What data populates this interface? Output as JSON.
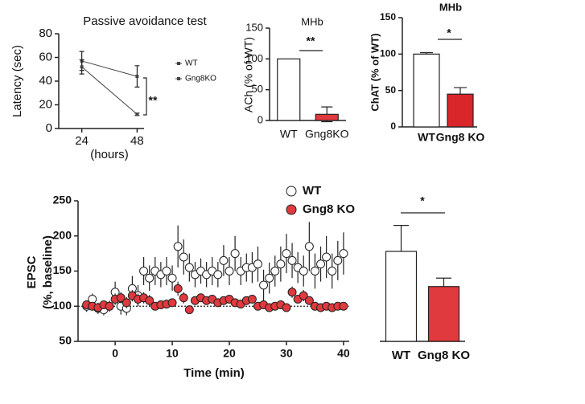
{
  "chart_data": [
    {
      "type": "line",
      "title": "Passive avoidance test",
      "xlabel": "(hours)",
      "ylabel": [
        "Latency (sec)"
      ],
      "x": [
        24,
        48
      ],
      "xlim": [
        14,
        51
      ],
      "xticks": [
        24,
        48
      ],
      "ylim": [
        0,
        80
      ],
      "yticks": [
        0,
        20,
        40,
        60,
        80
      ],
      "series": [
        {
          "name": "WT",
          "color": "#444444",
          "values": [
            57,
            44
          ],
          "errors": [
            8,
            9
          ]
        },
        {
          "name": "Gng8KO",
          "color": "#444444",
          "values": [
            52,
            12
          ],
          "errors": [
            6,
            1
          ]
        }
      ],
      "annotation": "**"
    },
    {
      "type": "bar",
      "title": "MHb",
      "ylabel": [
        "ACh (% of WT)"
      ],
      "categories": [
        "WT",
        "Gng8KO"
      ],
      "values": [
        100,
        10
      ],
      "errors": [
        0,
        12
      ],
      "colors": [
        "#ffffff",
        "#e0393e"
      ],
      "ylim": [
        0,
        150
      ],
      "yticks": [
        0,
        50,
        100,
        150
      ],
      "annotation": "**"
    },
    {
      "type": "bar",
      "title": "MHb",
      "ylabel": [
        "ChAT (% of WT)"
      ],
      "categories": [
        "WT",
        "Gng8 KO"
      ],
      "values": [
        100,
        45
      ],
      "errors": [
        2,
        9
      ],
      "colors": [
        "#ffffff",
        "#d9262b"
      ],
      "ylim": [
        0,
        150
      ],
      "yticks": [
        0,
        50,
        100,
        150
      ],
      "annotation": "*"
    },
    {
      "type": "scatter",
      "xlabel": "Time (min)",
      "ylabel": [
        "EPSC",
        "(%, baseline)"
      ],
      "x": [
        -5,
        -4,
        -3,
        -2,
        -1,
        0,
        1,
        2,
        3,
        4,
        5,
        6,
        7,
        8,
        9,
        10,
        11,
        12,
        13,
        14,
        15,
        16,
        17,
        18,
        19,
        20,
        21,
        22,
        23,
        24,
        25,
        26,
        27,
        28,
        29,
        30,
        31,
        32,
        33,
        34,
        35,
        36,
        37,
        38,
        39,
        40
      ],
      "xlim": [
        -6.5,
        41
      ],
      "xticks": [
        0,
        10,
        20,
        30,
        40
      ],
      "ylim": [
        50,
        250
      ],
      "yticks": [
        50,
        100,
        150,
        200,
        250
      ],
      "hline": 100,
      "series": [
        {
          "name": "WT",
          "color": "#ffffff",
          "values": [
            100,
            110,
            97,
            95,
            100,
            120,
            100,
            97,
            125,
            115,
            150,
            140,
            150,
            145,
            150,
            140,
            185,
            170,
            155,
            145,
            150,
            145,
            150,
            145,
            165,
            150,
            175,
            150,
            155,
            155,
            160,
            130,
            140,
            150,
            160,
            175,
            165,
            155,
            150,
            185,
            150,
            160,
            170,
            150,
            165,
            175
          ],
          "errors": [
            8,
            8,
            8,
            8,
            8,
            15,
            12,
            10,
            18,
            15,
            20,
            18,
            20,
            18,
            20,
            18,
            30,
            25,
            20,
            18,
            18,
            18,
            20,
            18,
            22,
            20,
            25,
            20,
            20,
            22,
            25,
            22,
            22,
            22,
            25,
            28,
            25,
            22,
            22,
            35,
            25,
            25,
            30,
            25,
            28,
            30
          ]
        },
        {
          "name": "Gng8 KO",
          "color": "#e0393e",
          "values": [
            102,
            100,
            98,
            102,
            100,
            110,
            112,
            105,
            115,
            110,
            112,
            108,
            100,
            102,
            103,
            105,
            125,
            112,
            95,
            108,
            112,
            108,
            110,
            105,
            108,
            110,
            105,
            103,
            108,
            110,
            100,
            102,
            98,
            100,
            102,
            98,
            120,
            110,
            115,
            108,
            100,
            98,
            100,
            98,
            100,
            100
          ],
          "errors": [
            5,
            5,
            5,
            5,
            5,
            8,
            8,
            8,
            8,
            8,
            8,
            8,
            6,
            6,
            6,
            6,
            10,
            8,
            6,
            6,
            6,
            6,
            6,
            6,
            6,
            6,
            6,
            6,
            6,
            6,
            6,
            6,
            6,
            6,
            6,
            6,
            8,
            6,
            8,
            6,
            6,
            6,
            6,
            6,
            6,
            6
          ]
        }
      ]
    },
    {
      "type": "bar",
      "categories": [
        "WT",
        "Gng8 KO"
      ],
      "values": [
        178,
        128
      ],
      "errors": [
        37,
        12
      ],
      "colors": [
        "#ffffff",
        "#e0393e"
      ],
      "ylim": [
        50,
        250
      ],
      "annotation": "*"
    }
  ]
}
